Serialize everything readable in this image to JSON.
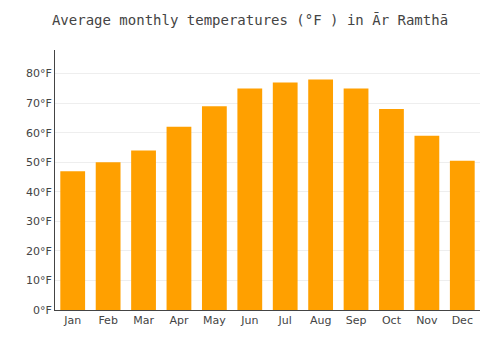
{
  "chart_data": {
    "type": "bar",
    "title": "Average monthly temperatures (°F ) in Ār Ramthā",
    "categories": [
      "Jan",
      "Feb",
      "Mar",
      "Apr",
      "May",
      "Jun",
      "Jul",
      "Aug",
      "Sep",
      "Oct",
      "Nov",
      "Dec"
    ],
    "values": [
      47,
      50,
      54,
      62,
      69,
      75,
      77,
      78,
      75,
      68,
      59,
      50.5
    ],
    "color": "#FFA000",
    "ylim": [
      0,
      88
    ],
    "yticks": [
      {
        "value": 0,
        "label": "0°F"
      },
      {
        "value": 10,
        "label": "10°F"
      },
      {
        "value": 20,
        "label": "20°F"
      },
      {
        "value": 30,
        "label": "30°F"
      },
      {
        "value": 40,
        "label": "40°F"
      },
      {
        "value": 50,
        "label": "50°F"
      },
      {
        "value": 60,
        "label": "60°F"
      },
      {
        "value": 70,
        "label": "70°F"
      },
      {
        "value": 80,
        "label": "80°F"
      }
    ],
    "grid": true
  }
}
